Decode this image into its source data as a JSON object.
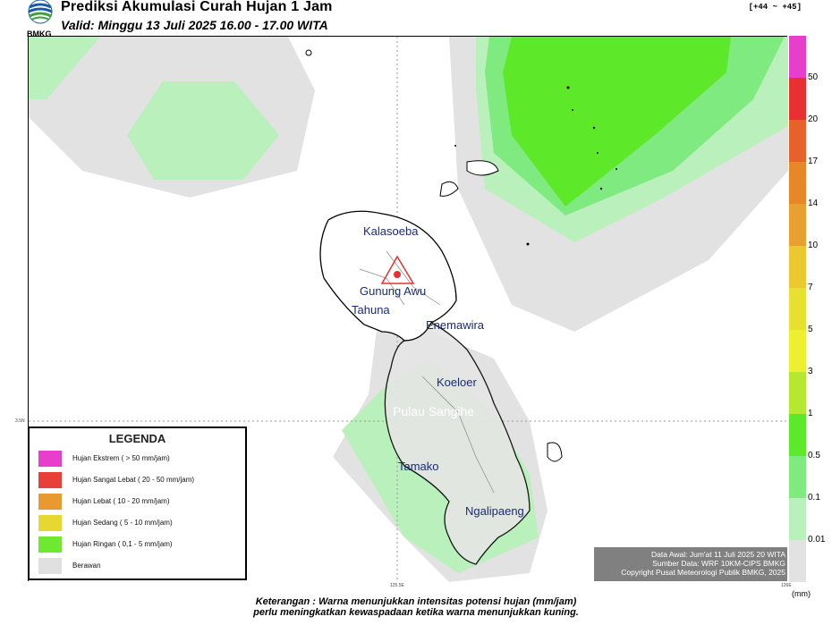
{
  "header": {
    "logo_text": "BMKG",
    "title": "Prediksi Akumulasi Curah Hujan 1 Jam",
    "valid": "Valid: Minggu 13 Juli 2025 16.00 - 17.00 WITA",
    "tag": "[+44 ~ +45]"
  },
  "map": {
    "places": [
      "Kalasoeba",
      "Gunung Awu",
      "Tahuna",
      "Enemawira",
      "Koeloer",
      "Pulau Sangihe",
      "Tamako",
      "Ngalipaeng"
    ],
    "lat_tick": "3.5N",
    "lon_tick_1": "125.5E",
    "lon_tick_2": "126E",
    "volcano_marker": "triangle-volcano-icon"
  },
  "legend": {
    "title": "LEGENDA",
    "items": [
      {
        "label": "Hujan Ekstrem ( > 50 mm/jam)",
        "color": "#e83ecc"
      },
      {
        "label": "Hujan Sangat Lebat ( 20 - 50 mm/jam)",
        "color": "#e84038"
      },
      {
        "label": "Hujan Lebat ( 10 - 20 mm/jam)",
        "color": "#e89a30"
      },
      {
        "label": "Hujan Sedang ( 5 - 10 mm/jam)",
        "color": "#e6d830"
      },
      {
        "label": "Hujan Ringan ( 0,1 - 5 mm/jam)",
        "color": "#6ee830"
      },
      {
        "label": "Berawan",
        "color": "#e0e0e0"
      }
    ]
  },
  "colorbar": {
    "labels": [
      "50",
      "20",
      "17",
      "14",
      "10",
      "7",
      "5",
      "3",
      "1",
      "0.5",
      "0.1",
      "0.01"
    ],
    "unit": "(mm)"
  },
  "source": {
    "line1": "Data Awal: Jum'at 11 Juli 2025 20 WITA",
    "line2": "Sumber Data: WRF 10KM-CIPS BMKG",
    "line3": "Copyright Pusat Meteorologi Publik BMKG, 2025"
  },
  "footer": {
    "line1": "Keterangan : Warna menunjukkan intensitas potensi hujan (mm/jam)",
    "line2": "perlu meningkatkan kewaspadaan ketika warna menunjukkan kuning."
  }
}
